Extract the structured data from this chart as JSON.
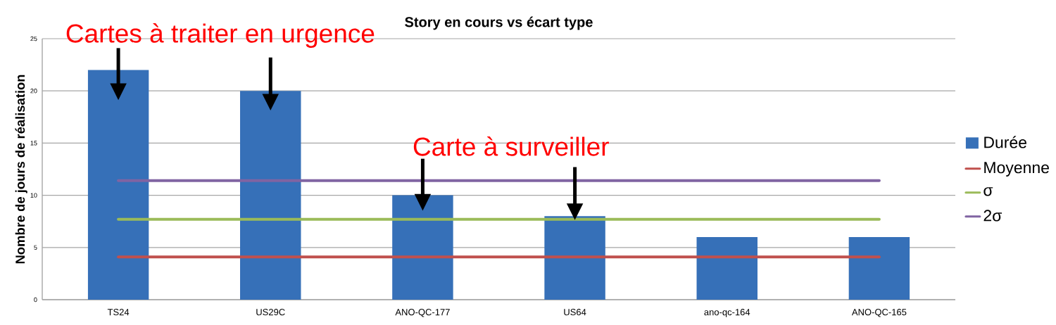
{
  "chart_data": {
    "type": "bar",
    "title": "Story en cours vs écart type",
    "ylabel": "Nombre de jours de réalisation",
    "categories": [
      "TS24",
      "US29C",
      "ANO-QC-177",
      "US64",
      "ano-qc-164",
      "ANO-QC-165"
    ],
    "series": [
      {
        "name": "Durée",
        "color": "#3670b8",
        "values": [
          22,
          20,
          10,
          8,
          6,
          6
        ]
      },
      {
        "name": "Moyenne",
        "type": "line",
        "color": "#c0504d",
        "values": [
          4.1,
          4.1,
          4.1,
          4.1,
          4.1,
          4.1
        ]
      },
      {
        "name": "σ",
        "type": "line",
        "color": "#9bbb59",
        "values": [
          7.7,
          7.7,
          7.7,
          7.7,
          7.7,
          7.7
        ]
      },
      {
        "name": "2σ",
        "type": "line",
        "color": "#8064a2",
        "values": [
          11.4,
          11.4,
          11.4,
          11.4,
          11.4,
          11.4
        ]
      }
    ],
    "ylim": [
      0,
      25
    ],
    "yticks": [
      0,
      5,
      10,
      15,
      20,
      25
    ],
    "grid": "y",
    "legend": "right",
    "marker": "none",
    "annotations": [
      {
        "text": "Cartes à traiter en urgence",
        "x": "TS24",
        "y": 22
      },
      {
        "text": "Carte à surveiller",
        "x": "ANO-QC-177",
        "y": 10
      }
    ]
  }
}
